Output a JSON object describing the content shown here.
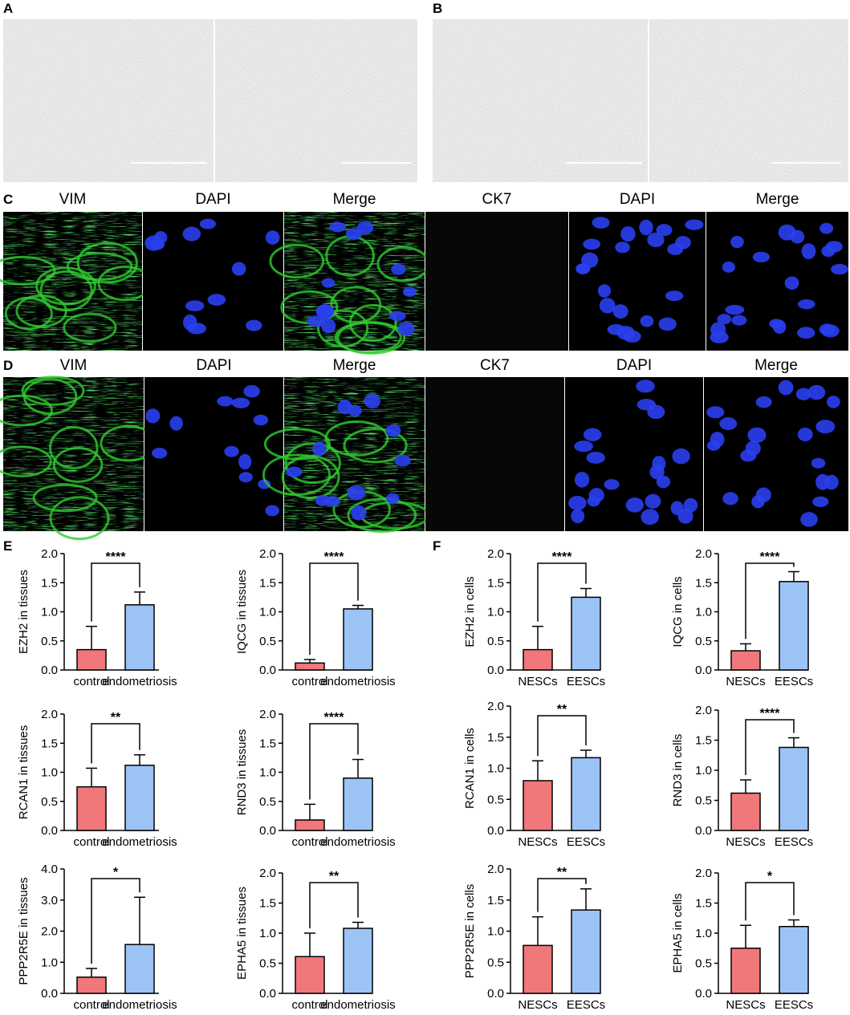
{
  "figure": {
    "panels": {
      "A": {
        "letter": "A"
      },
      "B": {
        "letter": "B"
      },
      "C": {
        "letter": "C",
        "captions": [
          "VIM",
          "DAPI",
          "Merge",
          "CK7",
          "DAPI",
          "Merge"
        ]
      },
      "D": {
        "letter": "D",
        "captions": [
          "VIM",
          "DAPI",
          "Merge",
          "CK7",
          "DAPI",
          "Merge"
        ]
      },
      "E": {
        "letter": "E"
      },
      "F": {
        "letter": "F"
      }
    },
    "colors": {
      "red_bar": "#f0787a",
      "blue_bar": "#9cc3f5",
      "green_stain": "#2ecc2e",
      "blue_stain": "#2a3ff0"
    }
  },
  "chart_data": [
    {
      "type": "bar",
      "panel": "E",
      "ylabel": "EZH2 in tissues",
      "categories": [
        "control",
        "endometriosis"
      ],
      "values": [
        0.35,
        1.12
      ],
      "errors": [
        0.4,
        0.22
      ],
      "ylim": [
        0,
        2.0
      ],
      "yticks": [
        "0.0",
        "0.5",
        "1.0",
        "1.5",
        "2.0"
      ],
      "significance": "****"
    },
    {
      "type": "bar",
      "panel": "E",
      "ylabel": "IQCG in tissues",
      "categories": [
        "control",
        "endometriosis"
      ],
      "values": [
        0.12,
        1.05
      ],
      "errors": [
        0.06,
        0.06
      ],
      "ylim": [
        0,
        2.0
      ],
      "yticks": [
        "0.0",
        "0.5",
        "1.0",
        "1.5",
        "2.0"
      ],
      "significance": "****"
    },
    {
      "type": "bar",
      "panel": "F",
      "ylabel": "EZH2 in cells",
      "categories": [
        "NESCs",
        "EESCs"
      ],
      "values": [
        0.35,
        1.25
      ],
      "errors": [
        0.4,
        0.15
      ],
      "ylim": [
        0,
        2.0
      ],
      "yticks": [
        "0.0",
        "0.5",
        "1.0",
        "1.5",
        "2.0"
      ],
      "significance": "****"
    },
    {
      "type": "bar",
      "panel": "F",
      "ylabel": "IQCG in cells",
      "categories": [
        "NESCs",
        "EESCs"
      ],
      "values": [
        0.33,
        1.52
      ],
      "errors": [
        0.12,
        0.17
      ],
      "ylim": [
        0,
        2.0
      ],
      "yticks": [
        "0.0",
        "0.5",
        "1.0",
        "1.5",
        "2.0"
      ],
      "significance": "****"
    },
    {
      "type": "bar",
      "panel": "E",
      "ylabel": "RCAN1 in tissues",
      "categories": [
        "control",
        "endometriosis"
      ],
      "values": [
        0.75,
        1.12
      ],
      "errors": [
        0.32,
        0.18
      ],
      "ylim": [
        0,
        2.0
      ],
      "yticks": [
        "0.0",
        "0.5",
        "1.0",
        "1.5",
        "2.0"
      ],
      "significance": "**"
    },
    {
      "type": "bar",
      "panel": "E",
      "ylabel": "RND3 in tissues",
      "categories": [
        "control",
        "endometriosis"
      ],
      "values": [
        0.18,
        0.9
      ],
      "errors": [
        0.27,
        0.32
      ],
      "ylim": [
        0,
        2.0
      ],
      "yticks": [
        "0.0",
        "0.5",
        "1.0",
        "1.5",
        "2.0"
      ],
      "significance": "****"
    },
    {
      "type": "bar",
      "panel": "F",
      "ylabel": "RCAN1 in cells",
      "categories": [
        "NESCs",
        "EESCs"
      ],
      "values": [
        0.8,
        1.17
      ],
      "errors": [
        0.32,
        0.12
      ],
      "ylim": [
        0,
        2.0
      ],
      "yticks": [
        "0.0",
        "0.5",
        "1.0",
        "1.5",
        "2.0"
      ],
      "significance": "**"
    },
    {
      "type": "bar",
      "panel": "F",
      "ylabel": "RND3 in cells",
      "categories": [
        "NESCs",
        "EESCs"
      ],
      "values": [
        0.62,
        1.38
      ],
      "errors": [
        0.22,
        0.16
      ],
      "ylim": [
        0,
        2.0
      ],
      "yticks": [
        "0.0",
        "0.5",
        "1.0",
        "1.5",
        "2.0"
      ],
      "significance": "****"
    },
    {
      "type": "bar",
      "panel": "E",
      "ylabel": "PPP2R5E in tissues",
      "categories": [
        "control",
        "endometriosis"
      ],
      "values": [
        0.52,
        1.57
      ],
      "errors": [
        0.28,
        1.52
      ],
      "ylim": [
        0,
        4.0
      ],
      "yticks": [
        "0.0",
        "1.0",
        "2.0",
        "3.0",
        "4.0"
      ],
      "significance": "*"
    },
    {
      "type": "bar",
      "panel": "E",
      "ylabel": "EPHA5 in tissues",
      "categories": [
        "control",
        "endometriosis"
      ],
      "values": [
        0.61,
        1.08
      ],
      "errors": [
        0.39,
        0.1
      ],
      "ylim": [
        0,
        2.0
      ],
      "yticks": [
        "0.0",
        "0.5",
        "1.0",
        "1.5",
        "2.0"
      ],
      "significance": "**"
    },
    {
      "type": "bar",
      "panel": "F",
      "ylabel": "PPP2R5E in cells",
      "categories": [
        "NESCs",
        "EESCs"
      ],
      "values": [
        0.77,
        1.34
      ],
      "errors": [
        0.46,
        0.34
      ],
      "ylim": [
        0,
        2.0
      ],
      "yticks": [
        "0.0",
        "0.5",
        "1.0",
        "1.5",
        "2.0"
      ],
      "significance": "**"
    },
    {
      "type": "bar",
      "panel": "F",
      "ylabel": "EPHA5 in cells",
      "categories": [
        "NESCs",
        "EESCs"
      ],
      "values": [
        0.75,
        1.11
      ],
      "errors": [
        0.38,
        0.11
      ],
      "ylim": [
        0,
        2.0
      ],
      "yticks": [
        "0.0",
        "0.5",
        "1.0",
        "1.5",
        "2.0"
      ],
      "significance": "*"
    }
  ]
}
